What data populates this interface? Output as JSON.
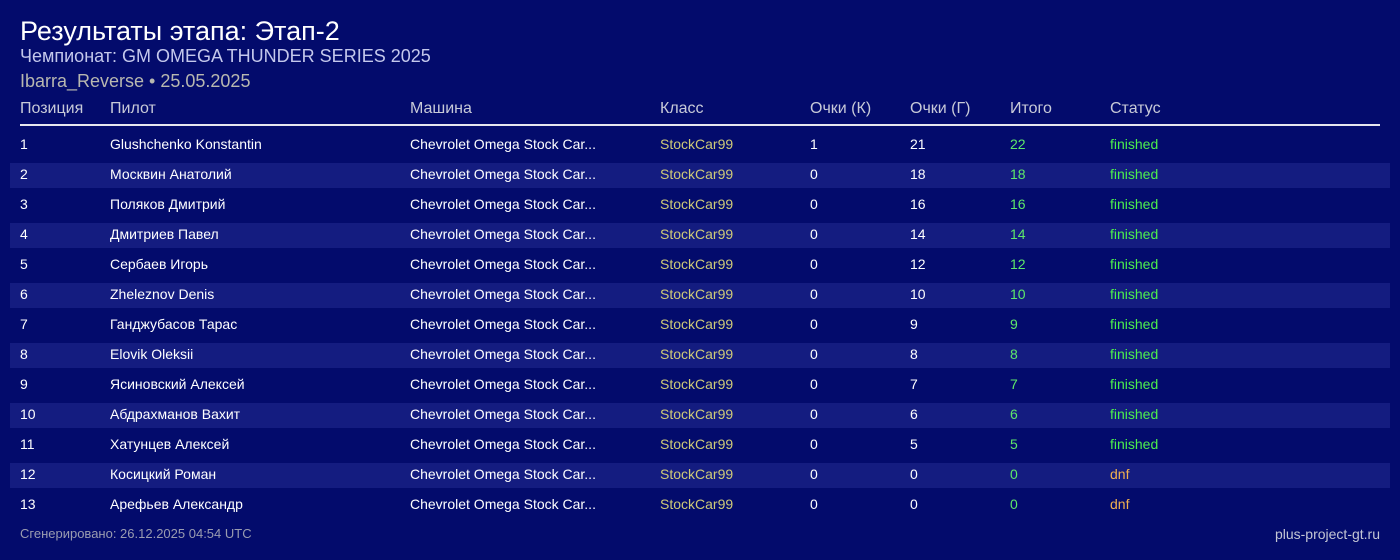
{
  "header": {
    "title": "Результаты этапа: Этап-2",
    "championship": "Чемпионат: GM OMEGA THUNDER SERIES 2025",
    "track_date": "Ibarra_Reverse • 25.05.2025"
  },
  "table": {
    "columns": [
      "Позиция",
      "Пилот",
      "Машина",
      "Класс",
      "Очки (К)",
      "Очки (Г)",
      "Итого",
      "Статус"
    ],
    "rows": [
      [
        "1",
        "Glushchenko Konstantin",
        "Chevrolet Omega Stock Car...",
        "StockCar99",
        "1",
        "21",
        "22",
        "finished"
      ],
      [
        "2",
        "Москвин Анатолий",
        "Chevrolet Omega Stock Car...",
        "StockCar99",
        "0",
        "18",
        "18",
        "finished"
      ],
      [
        "3",
        "Поляков Дмитрий",
        "Chevrolet Omega Stock Car...",
        "StockCar99",
        "0",
        "16",
        "16",
        "finished"
      ],
      [
        "4",
        "Дмитриев Павел",
        "Chevrolet Omega Stock Car...",
        "StockCar99",
        "0",
        "14",
        "14",
        "finished"
      ],
      [
        "5",
        "Сербаев Игорь",
        "Chevrolet Omega Stock Car...",
        "StockCar99",
        "0",
        "12",
        "12",
        "finished"
      ],
      [
        "6",
        "Zheleznov Denis",
        "Chevrolet Omega Stock Car...",
        "StockCar99",
        "0",
        "10",
        "10",
        "finished"
      ],
      [
        "7",
        "Ганджубасов Тарас",
        "Chevrolet Omega Stock Car...",
        "StockCar99",
        "0",
        "9",
        "9",
        "finished"
      ],
      [
        "8",
        "Elovik Oleksii",
        "Chevrolet Omega Stock Car...",
        "StockCar99",
        "0",
        "8",
        "8",
        "finished"
      ],
      [
        "9",
        "Ясиновский Алексей",
        "Chevrolet Omega Stock Car...",
        "StockCar99",
        "0",
        "7",
        "7",
        "finished"
      ],
      [
        "10",
        "Абдрахманов Вахит",
        "Chevrolet Omega Stock Car...",
        "StockCar99",
        "0",
        "6",
        "6",
        "finished"
      ],
      [
        "11",
        "Хатунцев Алексей",
        "Chevrolet Omega Stock Car...",
        "StockCar99",
        "0",
        "5",
        "5",
        "finished"
      ],
      [
        "12",
        "Косицкий Роман",
        "Chevrolet Omega Stock Car...",
        "StockCar99",
        "0",
        "0",
        "0",
        "dnf"
      ],
      [
        "13",
        "Арефьев Александр",
        "Chevrolet Omega Stock Car...",
        "StockCar99",
        "0",
        "0",
        "0",
        "dnf"
      ]
    ]
  },
  "footer": {
    "generated": "Сгенерировано: 26.12.2025 04:54 UTC",
    "site": "plus-project-gt.ru"
  },
  "colors": {
    "background": "#030b6c",
    "row_stripe": "#141c80",
    "class": "#cfca78",
    "total": "#5ee86a",
    "finished": "#4cf04c",
    "dnf": "#f0b050"
  }
}
